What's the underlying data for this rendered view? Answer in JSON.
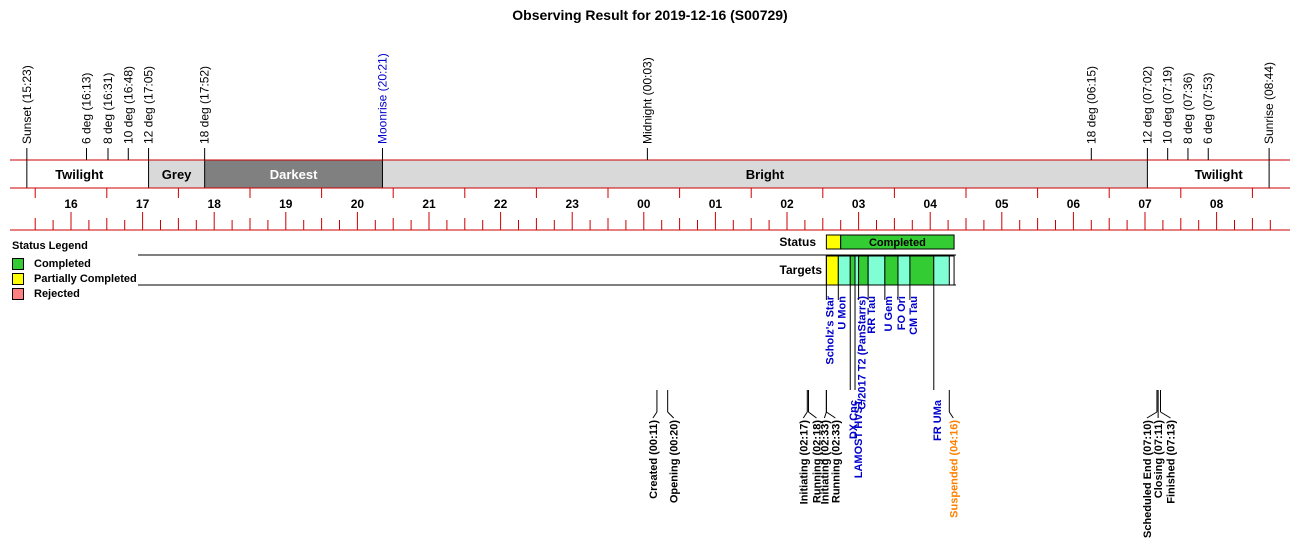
{
  "chart_data": {
    "type": "timeline",
    "title": "Observing Result for 2019-12-16 (S00729)",
    "time_range": [
      "15:23",
      "08:44"
    ],
    "hour_ticks": [
      "16",
      "17",
      "18",
      "19",
      "20",
      "21",
      "22",
      "23",
      "00",
      "01",
      "02",
      "03",
      "04",
      "05",
      "06",
      "07",
      "08"
    ],
    "events": [
      {
        "label": "Sunset (15:23)",
        "time": "15:23",
        "color": "#000000"
      },
      {
        "label": "6 deg (16:13)",
        "time": "16:13",
        "color": "#000000"
      },
      {
        "label": "8 deg (16:31)",
        "time": "16:31",
        "color": "#000000"
      },
      {
        "label": "10 deg (16:48)",
        "time": "16:48",
        "color": "#000000"
      },
      {
        "label": "12 deg (17:05)",
        "time": "17:05",
        "color": "#000000"
      },
      {
        "label": "18 deg (17:52)",
        "time": "17:52",
        "color": "#000000"
      },
      {
        "label": "Moonrise (20:21)",
        "time": "20:21",
        "color": "#0000cc"
      },
      {
        "label": "Midnight (00:03)",
        "time": "00:03",
        "color": "#000000"
      },
      {
        "label": "18 deg (06:15)",
        "time": "06:15",
        "color": "#000000"
      },
      {
        "label": "12 deg (07:02)",
        "time": "07:02",
        "color": "#000000"
      },
      {
        "label": "10 deg (07:19)",
        "time": "07:19",
        "color": "#000000"
      },
      {
        "label": "8 deg (07:36)",
        "time": "07:36",
        "color": "#000000"
      },
      {
        "label": "6 deg (07:53)",
        "time": "07:53",
        "color": "#000000"
      },
      {
        "label": "Sunrise (08:44)",
        "time": "08:44",
        "color": "#000000"
      }
    ],
    "sky_periods": [
      {
        "label": "Twilight",
        "start": "15:23",
        "end": "17:05",
        "color": "#ffffff",
        "text_color": "#000000"
      },
      {
        "label": "Grey",
        "start": "17:05",
        "end": "17:52",
        "color": "#d9d9d9",
        "text_color": "#000000"
      },
      {
        "label": "Darkest",
        "start": "17:52",
        "end": "20:21",
        "color": "#808080",
        "text_color": "#ffffff"
      },
      {
        "label": "Bright",
        "start": "20:21",
        "end": "07:02",
        "color": "#d9d9d9",
        "text_color": "#000000"
      },
      {
        "label": "Twilight",
        "start": "07:02",
        "end": "08:44",
        "color": "#ffffff",
        "text_color": "#000000"
      }
    ],
    "status_row_label": "Status",
    "status_bars": [
      {
        "label": "",
        "start": "02:33",
        "end": "02:45",
        "status": "Partially Completed"
      },
      {
        "label": "Completed",
        "start": "02:45",
        "end": "04:20",
        "status": "Completed"
      }
    ],
    "targets_row_label": "Targets",
    "targets": [
      {
        "name": "Scholz's Star",
        "start": "02:33",
        "end": "02:43",
        "status": "Partially Completed",
        "label_row": 0
      },
      {
        "name": "U Mon",
        "start": "02:43",
        "end": "02:53",
        "status": "Completed",
        "label_row": 0
      },
      {
        "name": "DX Cnc",
        "start": "02:53",
        "end": "02:57",
        "status": "Completed",
        "label_row": 1
      },
      {
        "name": "LAMOST HVS1",
        "start": "02:57",
        "end": "03:00",
        "status": "Completed",
        "label_row": 1
      },
      {
        "name": "C/2017 T2 (PanStarrs)",
        "start": "03:00",
        "end": "03:08",
        "status": "Completed",
        "label_row": 0
      },
      {
        "name": "RR Tau",
        "start": "03:08",
        "end": "03:22",
        "status": "Completed",
        "label_row": 0
      },
      {
        "name": "U Gem",
        "start": "03:22",
        "end": "03:33",
        "status": "Completed",
        "label_row": 0
      },
      {
        "name": "FO Ori",
        "start": "03:33",
        "end": "03:43",
        "status": "Completed",
        "label_row": 0
      },
      {
        "name": "CM Tau",
        "start": "03:43",
        "end": "04:03",
        "status": "Completed",
        "label_row": 0
      },
      {
        "name": "FR UMa",
        "start": "04:03",
        "end": "04:16",
        "status": "Completed",
        "label_row": 1
      }
    ],
    "log_events": [
      {
        "label": "Created (00:11)",
        "time": "00:11",
        "color": "#000000"
      },
      {
        "label": "Opening (00:20)",
        "time": "00:20",
        "color": "#000000"
      },
      {
        "label": "Initiating (02:17)",
        "time": "02:17",
        "color": "#000000"
      },
      {
        "label": "Running (02:18)",
        "time": "02:18",
        "color": "#000000"
      },
      {
        "label": "Initiating (02:33)",
        "time": "02:33",
        "color": "#000000"
      },
      {
        "label": "Running (02:33)",
        "time": "02:33",
        "color": "#000000"
      },
      {
        "label": "Suspended (04:16)",
        "time": "04:16",
        "color": "#ff8000"
      },
      {
        "label": "Scheduled End (07:10)",
        "time": "07:10",
        "color": "#000000"
      },
      {
        "label": "Closing (07:11)",
        "time": "07:11",
        "color": "#000000"
      },
      {
        "label": "Finished (07:13)",
        "time": "07:13",
        "color": "#000000"
      }
    ],
    "legend": {
      "title": "Status Legend",
      "items": [
        {
          "label": "Completed",
          "color": "#33cc33"
        },
        {
          "label": "Partially Completed",
          "color": "#ffff00"
        },
        {
          "label": "Rejected",
          "color": "#ff8080"
        }
      ]
    },
    "target_colors": [
      "#33cc33",
      "#80ffd4"
    ],
    "axis_line_color": "#cc0000",
    "target_label_color": "#0000cc"
  }
}
